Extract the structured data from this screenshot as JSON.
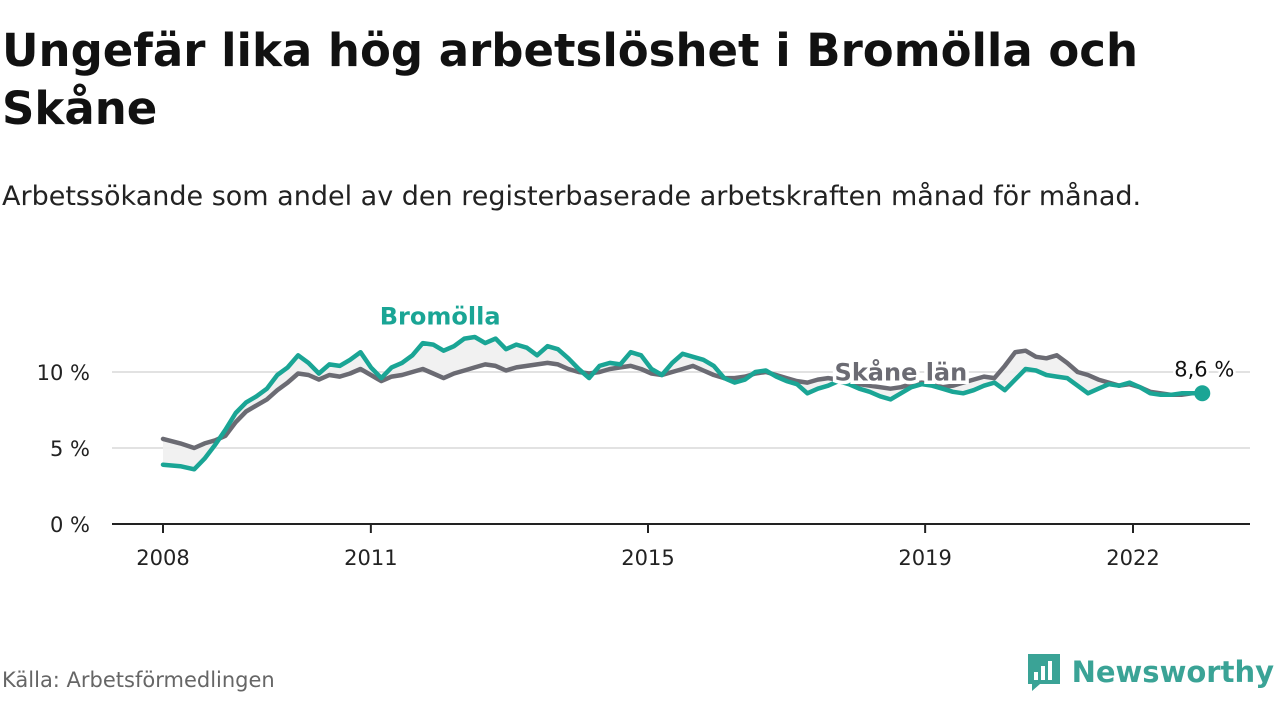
{
  "title": "Ungefär lika hög arbetslöshet i Bromölla och Skåne",
  "subtitle": "Arbetssökande som andel av den registerbaserade arbetskraften månad för månad.",
  "source": "Källa: Arbetsförmedlingen",
  "brand": {
    "name": "Newsworthy",
    "icon": "newsworthy-logo-icon",
    "color": "#3aa396"
  },
  "colors": {
    "bromolla": "#1aa595",
    "skane": "#6b6b73",
    "grid": "#d9d9d9",
    "axis": "#222222",
    "fill": "#efefef"
  },
  "chart_data": {
    "type": "line",
    "title": "Ungefär lika hög arbetslöshet i Bromölla och Skåne",
    "xlabel": "",
    "ylabel": "",
    "xlim": [
      2007.5,
      2023.25
    ],
    "ylim": [
      0,
      10
    ],
    "y_ticks": [
      0,
      5,
      10
    ],
    "y_tick_labels": [
      "0 %",
      "5 %",
      "10 %"
    ],
    "x_ticks": [
      2008,
      2011,
      2015,
      2019,
      2022
    ],
    "x_tick_labels": [
      "2008",
      "2011",
      "2015",
      "2019",
      "2022"
    ],
    "end_label": "8,6 %",
    "series": [
      {
        "name": "Bromölla",
        "x": [
          2008.0,
          2008.25,
          2008.45,
          2008.6,
          2008.75,
          2008.9,
          2009.05,
          2009.2,
          2009.35,
          2009.5,
          2009.65,
          2009.8,
          2009.95,
          2010.1,
          2010.25,
          2010.4,
          2010.55,
          2010.7,
          2010.85,
          2011.0,
          2011.15,
          2011.3,
          2011.45,
          2011.6,
          2011.75,
          2011.9,
          2012.05,
          2012.2,
          2012.35,
          2012.5,
          2012.65,
          2012.8,
          2012.95,
          2013.1,
          2013.25,
          2013.4,
          2013.55,
          2013.7,
          2013.85,
          2014.0,
          2014.15,
          2014.3,
          2014.45,
          2014.6,
          2014.75,
          2014.9,
          2015.05,
          2015.2,
          2015.35,
          2015.5,
          2015.65,
          2015.8,
          2015.95,
          2016.1,
          2016.25,
          2016.4,
          2016.55,
          2016.7,
          2016.85,
          2017.0,
          2017.15,
          2017.3,
          2017.45,
          2017.6,
          2017.75,
          2017.9,
          2018.05,
          2018.2,
          2018.35,
          2018.5,
          2018.65,
          2018.8,
          2018.95,
          2019.1,
          2019.25,
          2019.4,
          2019.55,
          2019.7,
          2019.85,
          2020.0,
          2020.15,
          2020.3,
          2020.45,
          2020.6,
          2020.75,
          2020.9,
          2021.05,
          2021.2,
          2021.35,
          2021.5,
          2021.65,
          2021.8,
          2021.95,
          2022.1,
          2022.25,
          2022.4,
          2022.55,
          2022.7,
          2022.85,
          2023.0
        ],
        "values": [
          3.9,
          3.8,
          3.6,
          4.3,
          5.2,
          6.2,
          7.3,
          8.0,
          8.4,
          8.9,
          9.8,
          10.3,
          11.1,
          10.6,
          9.9,
          10.5,
          10.4,
          10.8,
          11.3,
          10.3,
          9.6,
          10.3,
          10.6,
          11.1,
          11.9,
          11.8,
          11.4,
          11.7,
          12.2,
          12.3,
          11.9,
          12.2,
          11.5,
          11.8,
          11.6,
          11.1,
          11.7,
          11.5,
          10.9,
          10.2,
          9.6,
          10.4,
          10.6,
          10.5,
          11.3,
          11.1,
          10.2,
          9.8,
          10.6,
          11.2,
          11.0,
          10.8,
          10.4,
          9.6,
          9.3,
          9.5,
          10.0,
          10.1,
          9.7,
          9.4,
          9.2,
          8.6,
          8.9,
          9.1,
          9.4,
          9.2,
          8.9,
          8.7,
          8.4,
          8.2,
          8.6,
          9.0,
          9.2,
          9.1,
          8.9,
          8.7,
          8.6,
          8.8,
          9.1,
          9.3,
          8.8,
          9.5,
          10.2,
          10.1,
          9.8,
          9.7,
          9.6,
          9.1,
          8.6,
          8.9,
          9.2,
          9.1,
          9.3,
          9.0,
          8.6,
          8.5,
          8.5,
          8.6,
          8.6,
          8.6
        ]
      },
      {
        "name": "Skåne län",
        "x": [
          2008.0,
          2008.25,
          2008.45,
          2008.6,
          2008.75,
          2008.9,
          2009.05,
          2009.2,
          2009.35,
          2009.5,
          2009.65,
          2009.8,
          2009.95,
          2010.1,
          2010.25,
          2010.4,
          2010.55,
          2010.7,
          2010.85,
          2011.0,
          2011.15,
          2011.3,
          2011.45,
          2011.6,
          2011.75,
          2011.9,
          2012.05,
          2012.2,
          2012.35,
          2012.5,
          2012.65,
          2012.8,
          2012.95,
          2013.1,
          2013.25,
          2013.4,
          2013.55,
          2013.7,
          2013.85,
          2014.0,
          2014.15,
          2014.3,
          2014.45,
          2014.6,
          2014.75,
          2014.9,
          2015.05,
          2015.2,
          2015.35,
          2015.5,
          2015.65,
          2015.8,
          2015.95,
          2016.1,
          2016.25,
          2016.4,
          2016.55,
          2016.7,
          2016.85,
          2017.0,
          2017.15,
          2017.3,
          2017.45,
          2017.6,
          2017.75,
          2017.9,
          2018.05,
          2018.2,
          2018.35,
          2018.5,
          2018.65,
          2018.8,
          2018.95,
          2019.1,
          2019.25,
          2019.4,
          2019.55,
          2019.7,
          2019.85,
          2020.0,
          2020.15,
          2020.3,
          2020.45,
          2020.6,
          2020.75,
          2020.9,
          2021.05,
          2021.2,
          2021.35,
          2021.5,
          2021.65,
          2021.8,
          2021.95,
          2022.1,
          2022.25,
          2022.4,
          2022.55,
          2022.7,
          2022.85,
          2023.0
        ],
        "values": [
          5.6,
          5.3,
          5.0,
          5.3,
          5.5,
          5.8,
          6.7,
          7.4,
          7.8,
          8.2,
          8.8,
          9.3,
          9.9,
          9.8,
          9.5,
          9.8,
          9.7,
          9.9,
          10.2,
          9.8,
          9.4,
          9.7,
          9.8,
          10.0,
          10.2,
          9.9,
          9.6,
          9.9,
          10.1,
          10.3,
          10.5,
          10.4,
          10.1,
          10.3,
          10.4,
          10.5,
          10.6,
          10.5,
          10.2,
          10.0,
          9.9,
          10.0,
          10.2,
          10.3,
          10.4,
          10.2,
          9.9,
          9.8,
          10.0,
          10.2,
          10.4,
          10.1,
          9.8,
          9.6,
          9.6,
          9.7,
          9.9,
          10.0,
          9.8,
          9.6,
          9.4,
          9.3,
          9.5,
          9.6,
          9.5,
          9.3,
          9.2,
          9.1,
          9.0,
          8.9,
          9.0,
          9.2,
          9.3,
          9.2,
          9.0,
          9.1,
          9.3,
          9.5,
          9.7,
          9.6,
          10.4,
          11.3,
          11.4,
          11.0,
          10.9,
          11.1,
          10.6,
          10.0,
          9.8,
          9.5,
          9.3,
          9.1,
          9.2,
          9.0,
          8.7,
          8.6,
          8.5,
          8.5,
          8.6,
          8.6
        ]
      }
    ],
    "annotations": [
      {
        "text": "Bromölla",
        "series": "Bromölla"
      },
      {
        "text": "Skåne län",
        "series": "Skåne län"
      }
    ]
  }
}
